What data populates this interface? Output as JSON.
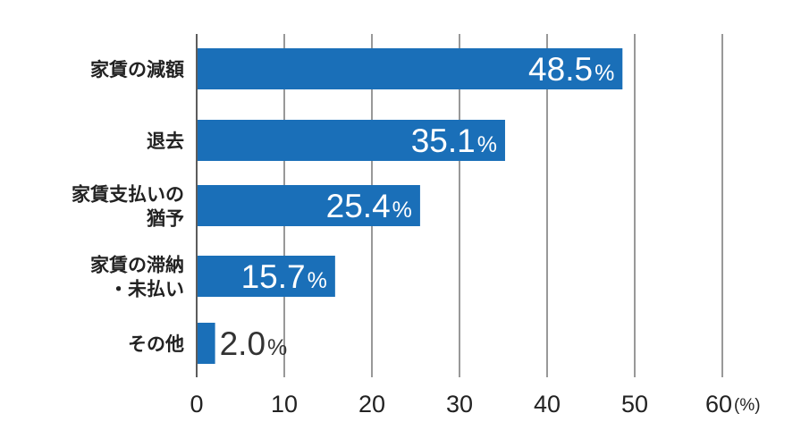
{
  "chart_data": {
    "type": "bar",
    "orientation": "horizontal",
    "categories": [
      [
        "家賃の減額"
      ],
      [
        "退去"
      ],
      [
        "家賃支払いの",
        "猶予"
      ],
      [
        "家賃の滞納",
        "・未払い"
      ],
      [
        "その他"
      ]
    ],
    "values": [
      48.5,
      35.1,
      25.4,
      15.7,
      2.0
    ],
    "value_labels": [
      "48.5",
      "35.1",
      "25.4",
      "15.7",
      "2.0"
    ],
    "value_suffix": "%",
    "xticks": [
      "0",
      "10",
      "20",
      "30",
      "40",
      "50",
      "60"
    ],
    "x_unit": "(%)",
    "xlim": [
      0,
      60
    ],
    "grid": "vertical",
    "legend": "none",
    "colors": {
      "bar": "#1a6fb8",
      "grid": "#555555",
      "label_inside": "#ffffff",
      "label_outside": "#333333"
    }
  }
}
